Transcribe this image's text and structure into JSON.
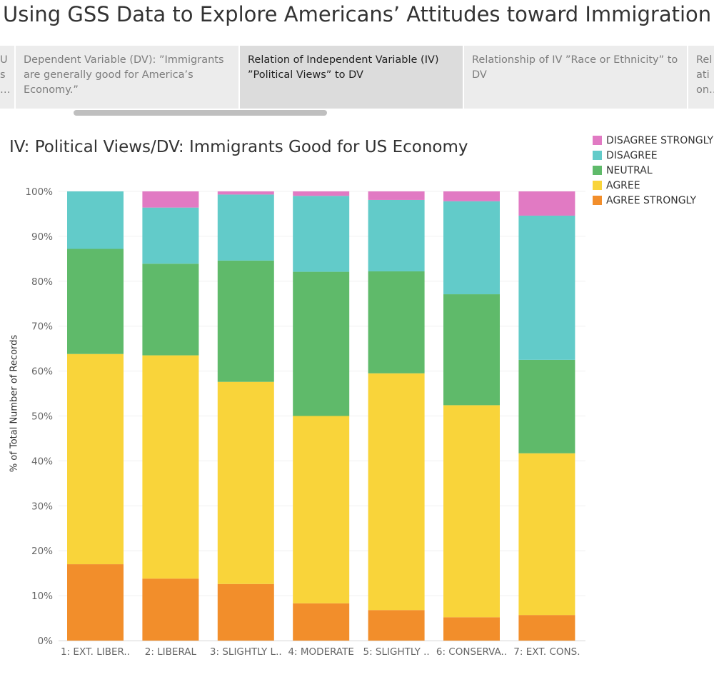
{
  "story": {
    "title": "Using GSS Data to Explore Americans’ Attitudes toward Immigration",
    "points": [
      {
        "label": "U\ns\n…",
        "active": false
      },
      {
        "label": "Dependent Variable (DV): ”Immigrants are generally good for America’s Economy.”",
        "active": false
      },
      {
        "label": "Relation of Independent Variable (IV) ”Political Views” to DV",
        "active": true
      },
      {
        "label": "Relationship of IV ”Race or Ethnicity” to DV",
        "active": false
      },
      {
        "label": "Rel\nati\non…",
        "active": false
      }
    ]
  },
  "chart_data": {
    "type": "bar",
    "stacked": true,
    "title": "IV: Political Views/DV: Immigrants Good for US Economy",
    "xlabel": "",
    "ylabel": "% of Total Number of Records",
    "ylim": [
      0,
      100
    ],
    "yticks": [
      "0%",
      "10%",
      "20%",
      "30%",
      "40%",
      "50%",
      "60%",
      "70%",
      "80%",
      "90%",
      "100%"
    ],
    "grid": true,
    "legend_position": "top-right",
    "categories": [
      "1: EXT. LIBER..",
      "2: LIBERAL",
      "3: SLIGHTLY L..",
      "4: MODERATE",
      "5: SLIGHTLY ..",
      "6: CONSERVA..",
      "7: EXT. CONS."
    ],
    "series": [
      {
        "name": "AGREE STRONGLY",
        "color": "#f28e2b",
        "values": [
          17.0,
          13.8,
          12.6,
          8.3,
          6.8,
          5.2,
          5.7
        ]
      },
      {
        "name": "AGREE",
        "color": "#f9d43a",
        "values": [
          46.8,
          49.7,
          45.0,
          41.7,
          52.7,
          47.2,
          36.0
        ]
      },
      {
        "name": "NEUTRAL",
        "color": "#5fba6a",
        "values": [
          23.4,
          20.4,
          27.0,
          32.1,
          22.7,
          24.7,
          20.8
        ]
      },
      {
        "name": "DISAGREE",
        "color": "#62cbc9",
        "values": [
          12.8,
          12.5,
          14.7,
          16.9,
          15.9,
          20.7,
          32.1
        ]
      },
      {
        "name": "DISAGREE STRONGLY",
        "color": "#e17ac3",
        "values": [
          0.0,
          3.6,
          0.7,
          1.0,
          1.9,
          2.2,
          5.4
        ]
      }
    ],
    "legend_order": [
      "DISAGREE STRONGLY",
      "DISAGREE",
      "NEUTRAL",
      "AGREE",
      "AGREE STRONGLY"
    ]
  }
}
